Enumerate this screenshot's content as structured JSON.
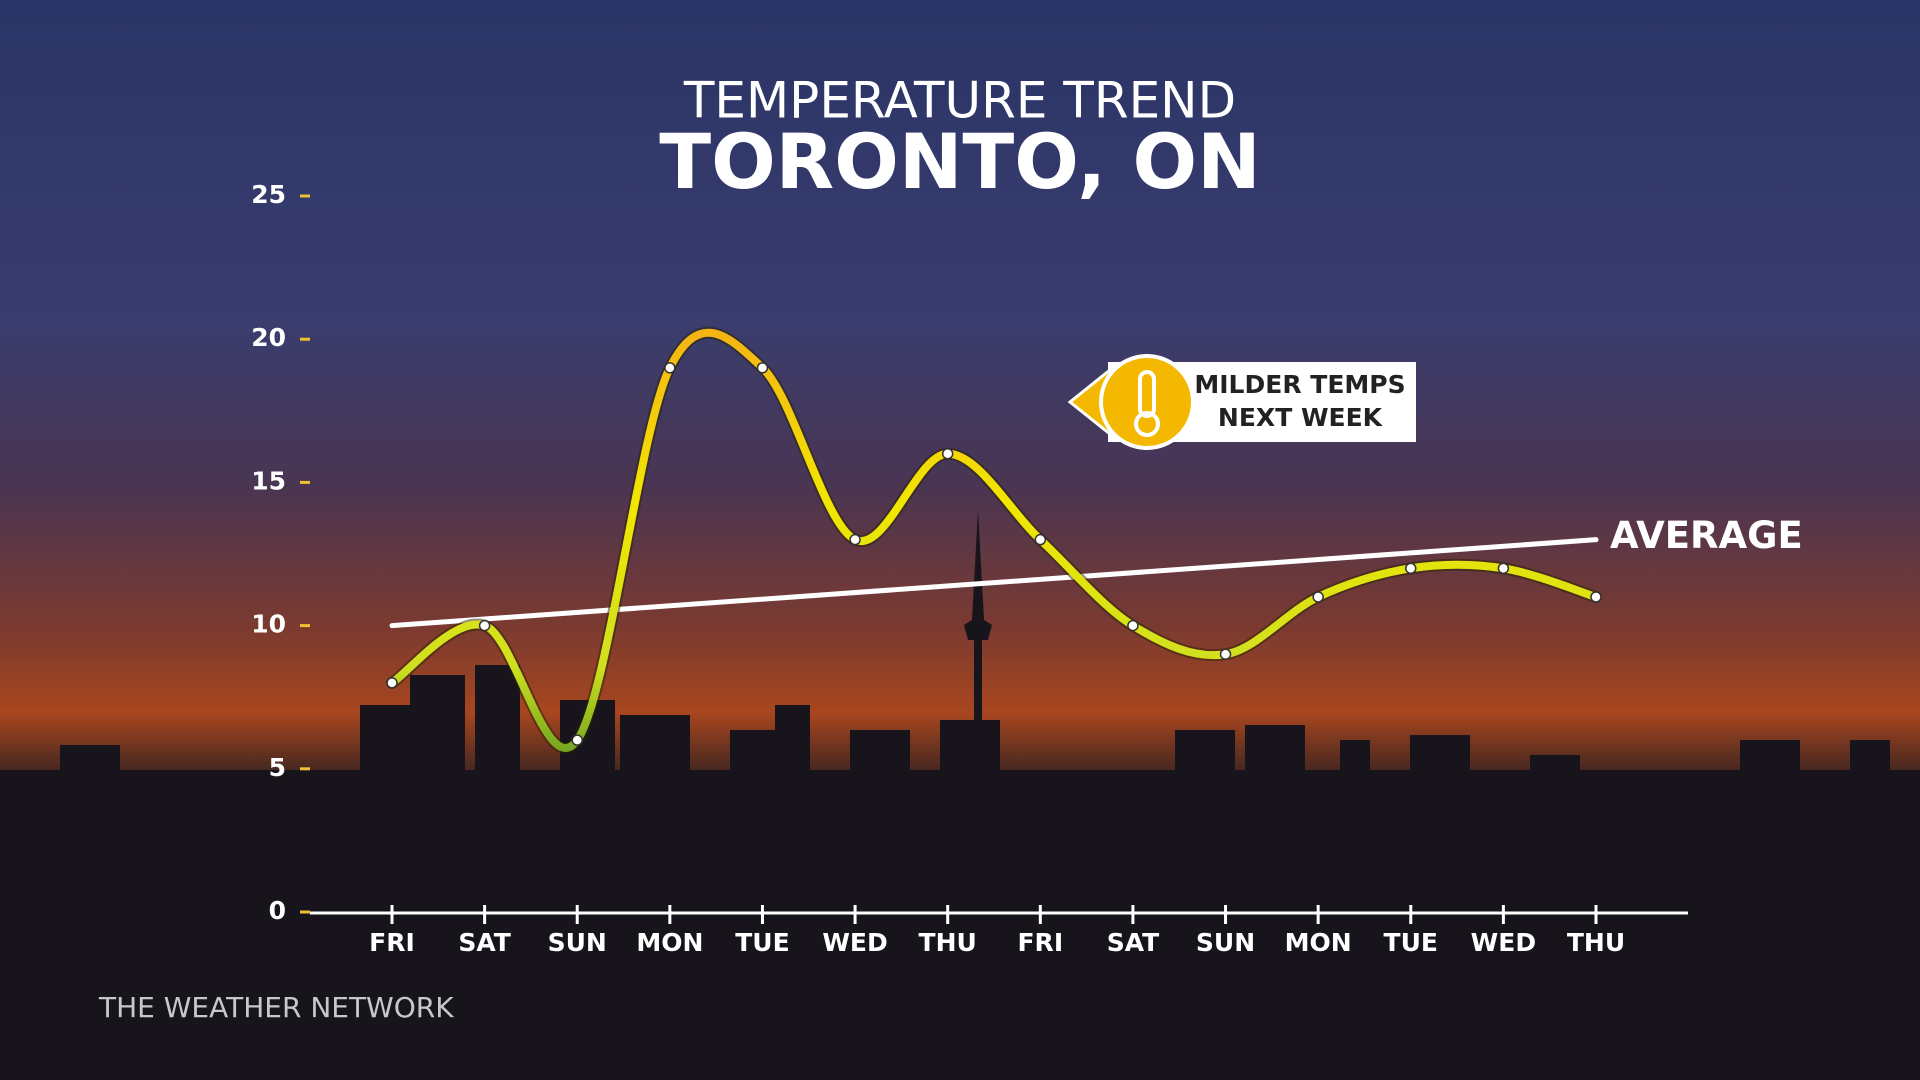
{
  "chart_data": {
    "type": "line",
    "title": "TEMPERATURE TREND",
    "subtitle": "TORONTO, ON",
    "categories": [
      "FRI",
      "SAT",
      "SUN",
      "MON",
      "TUE",
      "WED",
      "THU",
      "FRI",
      "SAT",
      "SUN",
      "MON",
      "TUE",
      "WED",
      "THU"
    ],
    "values": [
      8,
      10,
      6,
      19,
      19,
      13,
      16,
      13,
      10,
      9,
      11,
      12,
      12,
      11
    ],
    "color": "#f2e600",
    "average": {
      "label": "AVERAGE",
      "start": 10,
      "end": 13,
      "color": "#ffffff"
    },
    "ylim": [
      0,
      25
    ],
    "yticks": [
      0,
      5,
      10,
      15,
      20,
      25
    ],
    "annotation": {
      "lines": [
        "MILDER TEMPS",
        "NEXT WEEK"
      ]
    },
    "source": "THE WEATHER NETWORK"
  }
}
